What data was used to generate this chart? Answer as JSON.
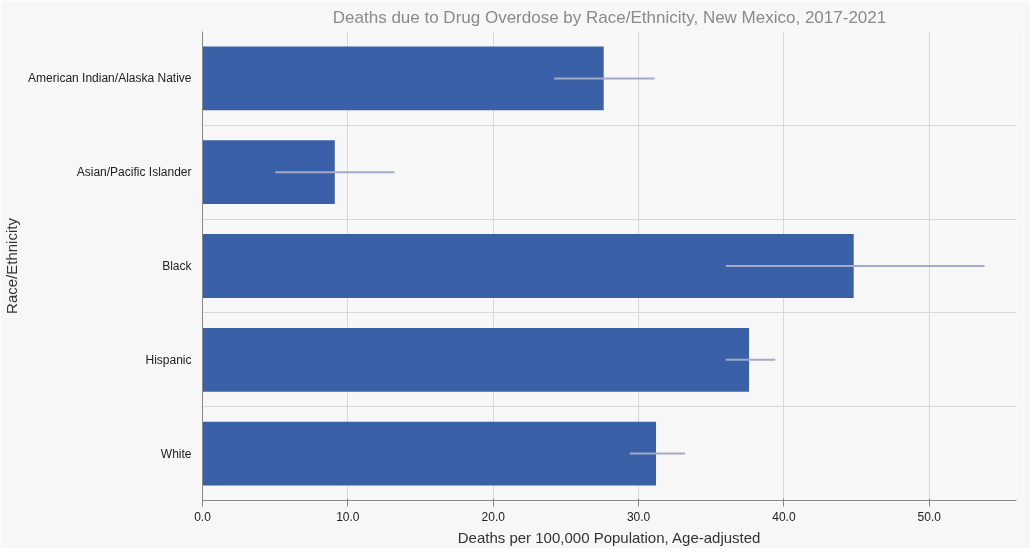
{
  "chart_data": {
    "type": "bar",
    "orientation": "horizontal",
    "title": "Deaths due to Drug Overdose by Race/Ethnicity, New Mexico, 2017-2021",
    "xlabel": "Deaths per 100,000 Population, Age-adjusted",
    "ylabel": "Race/Ethnicity",
    "categories": [
      "American Indian/Alaska Native",
      "Asian/Pacific Islander",
      "Black",
      "Hispanic",
      "White"
    ],
    "values": [
      27.6,
      9.1,
      44.8,
      37.6,
      31.2
    ],
    "errors": [
      [
        24.2,
        31.1
      ],
      [
        5.0,
        13.2
      ],
      [
        36.0,
        53.8
      ],
      [
        36.0,
        39.4
      ],
      [
        29.4,
        33.2
      ]
    ],
    "color": "#3a60a8",
    "xlim": [
      0,
      56
    ],
    "xticks": [
      {
        "value": 0,
        "label": "0.0"
      },
      {
        "value": 10,
        "label": "10.0"
      },
      {
        "value": 20,
        "label": "20.0"
      },
      {
        "value": 30,
        "label": "30.0"
      },
      {
        "value": 40,
        "label": "40.0"
      },
      {
        "value": 50,
        "label": "50.0"
      }
    ],
    "grid": true
  }
}
